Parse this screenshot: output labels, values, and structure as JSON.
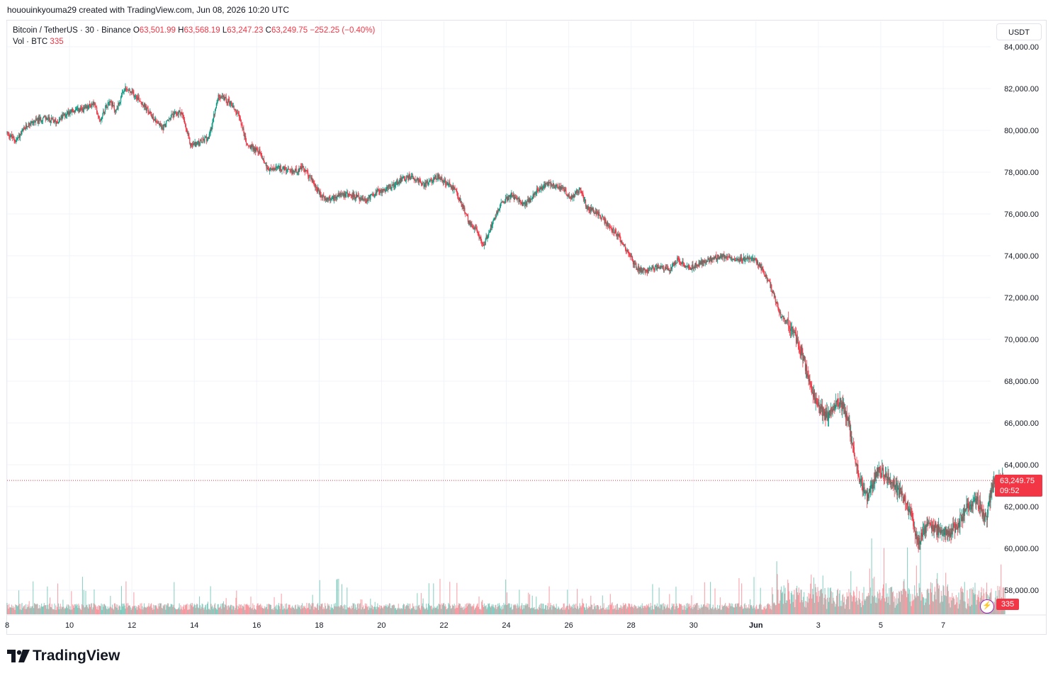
{
  "header": {
    "text": "hououinkyouma29 created with TradingView.com, Jun 08, 2026 10:20 UTC"
  },
  "legend": {
    "symbol": "Bitcoin / TetherUS · 30 · Binance",
    "o_label": "O",
    "o_value": "63,501.99",
    "h_label": "H",
    "h_value": "63,568.19",
    "l_label": "L",
    "l_value": "63,247.23",
    "c_label": "C",
    "c_value": "63,249.75",
    "change": "−252.25 (−0.40%)",
    "vol_label": "Vol · BTC",
    "vol_value": "335"
  },
  "currency_button": "USDT",
  "last_price": {
    "price": "63,249.75",
    "countdown": "09:52"
  },
  "volume_badge": "335",
  "brand": "TradingView",
  "colors": {
    "up": "#089981",
    "down": "#f23645",
    "grid": "#f0f3fa",
    "text": "#131722"
  },
  "chart_data": {
    "type": "candlestick",
    "symbol": "BTC/USDT",
    "interval": "30",
    "y_ticks": [
      84000,
      82000,
      80000,
      78000,
      76000,
      74000,
      72000,
      70000,
      68000,
      66000,
      64000,
      62000,
      60000,
      58000
    ],
    "y_tick_labels": [
      "84,000.00",
      "82,000.00",
      "80,000.00",
      "78,000.00",
      "76,000.00",
      "74,000.00",
      "72,000.00",
      "70,000.00",
      "68,000.00",
      "66,000.00",
      "64,000.00",
      "62,000.00",
      "60,000.00",
      "58,000.00"
    ],
    "x_ticks": [
      {
        "day": 8,
        "label": "8"
      },
      {
        "day": 10,
        "label": "10"
      },
      {
        "day": 12,
        "label": "12"
      },
      {
        "day": 14,
        "label": "14"
      },
      {
        "day": 16,
        "label": "16"
      },
      {
        "day": 18,
        "label": "18"
      },
      {
        "day": 20,
        "label": "20"
      },
      {
        "day": 22,
        "label": "22"
      },
      {
        "day": 24,
        "label": "24"
      },
      {
        "day": 26,
        "label": "26"
      },
      {
        "day": 28,
        "label": "28"
      },
      {
        "day": 30,
        "label": "30"
      },
      {
        "day": 32,
        "label": "Jun"
      },
      {
        "day": 34,
        "label": "3"
      },
      {
        "day": 36,
        "label": "5"
      },
      {
        "day": 38,
        "label": "7"
      }
    ],
    "ylim": [
      57000,
      85000
    ],
    "price_path": [
      [
        8.0,
        79900
      ],
      [
        8.3,
        79500
      ],
      [
        8.7,
        80300
      ],
      [
        9.2,
        80600
      ],
      [
        9.6,
        80400
      ],
      [
        10.0,
        80900
      ],
      [
        10.5,
        81000
      ],
      [
        10.8,
        81300
      ],
      [
        11.0,
        80500
      ],
      [
        11.3,
        81500
      ],
      [
        11.5,
        80900
      ],
      [
        11.8,
        82000
      ],
      [
        12.2,
        81600
      ],
      [
        12.6,
        80800
      ],
      [
        13.0,
        80100
      ],
      [
        13.3,
        80700
      ],
      [
        13.6,
        80900
      ],
      [
        13.9,
        79300
      ],
      [
        14.2,
        79400
      ],
      [
        14.5,
        79700
      ],
      [
        14.8,
        81700
      ],
      [
        15.2,
        81300
      ],
      [
        15.5,
        80500
      ],
      [
        15.7,
        79300
      ],
      [
        16.1,
        79000
      ],
      [
        16.4,
        78100
      ],
      [
        16.8,
        78200
      ],
      [
        17.1,
        78000
      ],
      [
        17.5,
        78200
      ],
      [
        17.8,
        77600
      ],
      [
        18.1,
        76800
      ],
      [
        18.4,
        76700
      ],
      [
        18.7,
        77000
      ],
      [
        19.1,
        76900
      ],
      [
        19.5,
        76600
      ],
      [
        19.8,
        77000
      ],
      [
        20.2,
        77200
      ],
      [
        20.6,
        77600
      ],
      [
        21.0,
        77800
      ],
      [
        21.4,
        77400
      ],
      [
        21.8,
        77800
      ],
      [
        22.1,
        77500
      ],
      [
        22.4,
        77100
      ],
      [
        22.8,
        75700
      ],
      [
        23.1,
        75100
      ],
      [
        23.3,
        74500
      ],
      [
        23.6,
        75700
      ],
      [
        23.9,
        76600
      ],
      [
        24.2,
        76900
      ],
      [
        24.6,
        76400
      ],
      [
        25.0,
        77100
      ],
      [
        25.4,
        77500
      ],
      [
        25.8,
        77200
      ],
      [
        26.1,
        76800
      ],
      [
        26.4,
        77200
      ],
      [
        26.6,
        76300
      ],
      [
        27.0,
        76000
      ],
      [
        27.3,
        75400
      ],
      [
        27.6,
        75000
      ],
      [
        27.9,
        74200
      ],
      [
        28.2,
        73400
      ],
      [
        28.5,
        73300
      ],
      [
        28.9,
        73500
      ],
      [
        29.2,
        73300
      ],
      [
        29.5,
        73800
      ],
      [
        29.9,
        73400
      ],
      [
        30.3,
        73700
      ],
      [
        30.7,
        73900
      ],
      [
        31.1,
        74000
      ],
      [
        31.5,
        73800
      ],
      [
        31.9,
        73900
      ],
      [
        32.2,
        73400
      ],
      [
        32.5,
        72500
      ],
      [
        32.8,
        71200
      ],
      [
        33.1,
        70700
      ],
      [
        33.4,
        69800
      ],
      [
        33.7,
        68200
      ],
      [
        34.0,
        66800
      ],
      [
        34.3,
        66300
      ],
      [
        34.6,
        67100
      ],
      [
        34.8,
        66800
      ],
      [
        35.0,
        65900
      ],
      [
        35.3,
        63500
      ],
      [
        35.6,
        62400
      ],
      [
        35.9,
        63700
      ],
      [
        36.2,
        63500
      ],
      [
        36.5,
        62900
      ],
      [
        36.8,
        62300
      ],
      [
        37.0,
        61700
      ],
      [
        37.2,
        60200
      ],
      [
        37.5,
        61100
      ],
      [
        37.8,
        60900
      ],
      [
        38.2,
        60700
      ],
      [
        38.5,
        61200
      ],
      [
        38.8,
        62000
      ],
      [
        39.1,
        62300
      ],
      [
        39.4,
        61400
      ],
      [
        39.6,
        63100
      ],
      [
        39.8,
        63200
      ],
      [
        40.0,
        63250
      ]
    ]
  }
}
